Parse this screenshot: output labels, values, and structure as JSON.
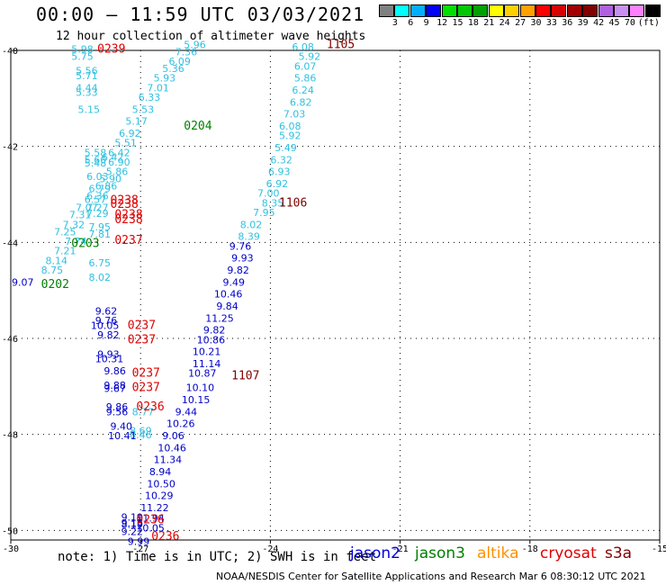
{
  "header": {
    "title": "00:00 – 11:59 UTC 03/03/2021",
    "subtitle": "12 hour collection of altimeter wave heights"
  },
  "legend": {
    "colors": [
      "#808080",
      "#00ffff",
      "#00b0ff",
      "#0000ff",
      "#00e000",
      "#00c800",
      "#00a000",
      "#ffff00",
      "#ffd000",
      "#ffa000",
      "#ff0000",
      "#d80000",
      "#a00000",
      "#800000",
      "#b060e0",
      "#c890f0",
      "#ff80ff",
      "#000000"
    ],
    "labels": [
      "",
      "3",
      "6",
      "9",
      "12",
      "15",
      "18",
      "21",
      "24",
      "27",
      "30",
      "33",
      "36",
      "39",
      "42",
      "45",
      "70",
      "(ft)"
    ],
    "unit": "(ft)"
  },
  "map": {
    "lon_ticks": [
      "-30",
      "-27",
      "-24",
      "-21",
      "-18",
      "-15"
    ],
    "lat_ticks": [
      "-40",
      "-42",
      "-44",
      "-46",
      "-48",
      "-50"
    ]
  },
  "obs_groups": [
    {
      "color": "#30c0e0",
      "obs": [
        {
          "lon": -28.6,
          "lat": -40.05,
          "v": "5.98"
        },
        {
          "lon": -28.6,
          "lat": -40.2,
          "v": "5.75"
        },
        {
          "lon": -28.5,
          "lat": -40.5,
          "v": "5.56"
        },
        {
          "lon": -28.5,
          "lat": -40.6,
          "v": "5.71"
        },
        {
          "lon": -28.5,
          "lat": -40.85,
          "v": "4.44"
        },
        {
          "lon": -28.5,
          "lat": -40.95,
          "v": "5.33"
        },
        {
          "lon": -28.45,
          "lat": -41.3,
          "v": "5.15"
        },
        {
          "lon": -28.3,
          "lat": -42.2,
          "v": "5.58"
        },
        {
          "lon": -28.3,
          "lat": -42.35,
          "v": "5.60"
        },
        {
          "lon": -28.3,
          "lat": -42.42,
          "v": "5.48"
        },
        {
          "lon": -28.25,
          "lat": -42.7,
          "v": "6.03"
        },
        {
          "lon": -28.2,
          "lat": -42.95,
          "v": "6.79"
        },
        {
          "lon": -28.25,
          "lat": -43.1,
          "v": "6.36"
        },
        {
          "lon": -28.3,
          "lat": -43.18,
          "v": "6.57"
        },
        {
          "lon": -28.5,
          "lat": -43.35,
          "v": "7.07"
        },
        {
          "lon": -28.25,
          "lat": -43.35,
          "v": "7.27"
        },
        {
          "lon": -28.25,
          "lat": -43.47,
          "v": "7.29"
        },
        {
          "lon": -28.65,
          "lat": -43.5,
          "v": "7.31"
        },
        {
          "lon": -28.8,
          "lat": -43.7,
          "v": "7.32"
        },
        {
          "lon": -28.2,
          "lat": -43.75,
          "v": "7.95"
        },
        {
          "lon": -29.0,
          "lat": -43.85,
          "v": "7.25"
        },
        {
          "lon": -28.2,
          "lat": -43.9,
          "v": "7.81"
        },
        {
          "lon": -28.75,
          "lat": -44.05,
          "v": "7.74"
        },
        {
          "lon": -29.0,
          "lat": -44.25,
          "v": "7.21"
        },
        {
          "lon": -29.2,
          "lat": -44.45,
          "v": "8.14"
        },
        {
          "lon": -29.3,
          "lat": -44.65,
          "v": "8.75"
        },
        {
          "lon": -28.2,
          "lat": -44.5,
          "v": "6.75"
        },
        {
          "lon": -28.2,
          "lat": -44.8,
          "v": "8.02"
        },
        {
          "lon": -27.9,
          "lat": -42.3,
          "v": "6.42"
        },
        {
          "lon": -27.75,
          "lat": -42.4,
          "v": "6.90"
        },
        {
          "lon": -27.8,
          "lat": -42.6,
          "v": "5.86"
        },
        {
          "lon": -27.95,
          "lat": -42.75,
          "v": "5.90"
        },
        {
          "lon": -28.05,
          "lat": -42.9,
          "v": "6.86"
        },
        {
          "lon": -27.75,
          "lat": -42.2,
          "v": "6.42"
        },
        {
          "lon": -27.6,
          "lat": -42.0,
          "v": "5.51"
        },
        {
          "lon": -27.5,
          "lat": -41.8,
          "v": "6.92"
        },
        {
          "lon": -27.35,
          "lat": -41.55,
          "v": "5.17"
        },
        {
          "lon": -27.2,
          "lat": -41.3,
          "v": "5.53"
        },
        {
          "lon": -27.05,
          "lat": -41.05,
          "v": "6.33"
        },
        {
          "lon": -26.85,
          "lat": -40.85,
          "v": "7.01"
        },
        {
          "lon": -26.7,
          "lat": -40.65,
          "v": "5.93"
        },
        {
          "lon": -26.5,
          "lat": -40.45,
          "v": "5.36"
        },
        {
          "lon": -26.35,
          "lat": -40.3,
          "v": "6.09"
        },
        {
          "lon": -26.2,
          "lat": -40.1,
          "v": "7.36"
        },
        {
          "lon": -26.0,
          "lat": -39.95,
          "v": "5.96"
        },
        {
          "lon": -23.5,
          "lat": -40.0,
          "v": "6.08"
        },
        {
          "lon": -23.35,
          "lat": -40.2,
          "v": "5.92"
        },
        {
          "lon": -23.45,
          "lat": -40.4,
          "v": "6.07"
        },
        {
          "lon": -23.45,
          "lat": -40.65,
          "v": "5.86"
        },
        {
          "lon": -23.5,
          "lat": -40.9,
          "v": "6.24"
        },
        {
          "lon": -23.55,
          "lat": -41.15,
          "v": "6.82"
        },
        {
          "lon": -23.7,
          "lat": -41.4,
          "v": "7.03"
        },
        {
          "lon": -23.8,
          "lat": -41.65,
          "v": "6.08"
        },
        {
          "lon": -23.8,
          "lat": -41.85,
          "v": "5.92"
        },
        {
          "lon": -23.9,
          "lat": -42.1,
          "v": "5.49"
        },
        {
          "lon": -24.0,
          "lat": -42.35,
          "v": "6.32"
        },
        {
          "lon": -24.05,
          "lat": -42.6,
          "v": "6.93"
        },
        {
          "lon": -24.1,
          "lat": -42.85,
          "v": "6.92"
        },
        {
          "lon": -24.3,
          "lat": -43.05,
          "v": "7.00"
        },
        {
          "lon": -24.2,
          "lat": -43.25,
          "v": "8.35"
        },
        {
          "lon": -24.4,
          "lat": -43.45,
          "v": "7.95"
        },
        {
          "lon": -24.7,
          "lat": -43.7,
          "v": "8.02"
        },
        {
          "lon": -24.75,
          "lat": -43.95,
          "v": "8.39"
        },
        {
          "lon": -27.2,
          "lat": -47.6,
          "v": "8.77"
        },
        {
          "lon": -27.25,
          "lat": -48.0,
          "v": "8.69"
        },
        {
          "lon": -27.25,
          "lat": -48.08,
          "v": "8.46"
        }
      ]
    },
    {
      "color": "#0000c8",
      "obs": [
        {
          "lon": -24.95,
          "lat": -44.15,
          "v": "9.76"
        },
        {
          "lon": -24.9,
          "lat": -44.4,
          "v": "9.93"
        },
        {
          "lon": -25.0,
          "lat": -44.65,
          "v": "9.82"
        },
        {
          "lon": -25.1,
          "lat": -44.9,
          "v": "9.49"
        },
        {
          "lon": -25.3,
          "lat": -45.15,
          "v": "10.46"
        },
        {
          "lon": -25.25,
          "lat": -45.4,
          "v": "9.84"
        },
        {
          "lon": -25.5,
          "lat": -45.65,
          "v": "11.25"
        },
        {
          "lon": -25.55,
          "lat": -45.9,
          "v": "9.82"
        },
        {
          "lon": -25.7,
          "lat": -46.1,
          "v": "10.86"
        },
        {
          "lon": -25.8,
          "lat": -46.35,
          "v": "10.21"
        },
        {
          "lon": -25.8,
          "lat": -46.6,
          "v": "11.14"
        },
        {
          "lon": -25.9,
          "lat": -46.8,
          "v": "10.87"
        },
        {
          "lon": -25.95,
          "lat": -47.1,
          "v": "10.10"
        },
        {
          "lon": -26.05,
          "lat": -47.35,
          "v": "10.15"
        },
        {
          "lon": -26.2,
          "lat": -47.6,
          "v": "9.44"
        },
        {
          "lon": -26.4,
          "lat": -47.85,
          "v": "10.26"
        },
        {
          "lon": -26.5,
          "lat": -48.1,
          "v": "9.06"
        },
        {
          "lon": -26.6,
          "lat": -48.35,
          "v": "10.46"
        },
        {
          "lon": -26.7,
          "lat": -48.6,
          "v": "11.34"
        },
        {
          "lon": -26.8,
          "lat": -48.85,
          "v": "8.94"
        },
        {
          "lon": -26.85,
          "lat": -49.1,
          "v": "10.50"
        },
        {
          "lon": -26.9,
          "lat": -49.35,
          "v": "10.29"
        },
        {
          "lon": -27.0,
          "lat": -49.6,
          "v": "11.22"
        },
        {
          "lon": -27.1,
          "lat": -49.82,
          "v": "11.94"
        },
        {
          "lon": -27.45,
          "lat": -49.8,
          "v": "9.19"
        },
        {
          "lon": -27.45,
          "lat": -49.92,
          "v": "9.15"
        },
        {
          "lon": -27.45,
          "lat": -49.95,
          "v": "8.19"
        },
        {
          "lon": -27.1,
          "lat": -50.02,
          "v": "10.05"
        },
        {
          "lon": -27.45,
          "lat": -50.1,
          "v": "9.22"
        },
        {
          "lon": -27.3,
          "lat": -50.3,
          "v": "9.99"
        },
        {
          "lon": -29.98,
          "lat": -44.9,
          "v": "9.07"
        },
        {
          "lon": -28.05,
          "lat": -45.5,
          "v": "9.62"
        },
        {
          "lon": -28.05,
          "lat": -45.7,
          "v": "9.76"
        },
        {
          "lon": -28.15,
          "lat": -45.8,
          "v": "10.05"
        },
        {
          "lon": -28.0,
          "lat": -46.0,
          "v": "9.82"
        },
        {
          "lon": -28.0,
          "lat": -46.4,
          "v": "9.93"
        },
        {
          "lon": -28.05,
          "lat": -46.5,
          "v": "10.31"
        },
        {
          "lon": -27.85,
          "lat": -46.75,
          "v": "9.86"
        },
        {
          "lon": -27.85,
          "lat": -47.05,
          "v": "9.88"
        },
        {
          "lon": -27.85,
          "lat": -47.12,
          "v": "9.67"
        },
        {
          "lon": -27.8,
          "lat": -47.5,
          "v": "9.86"
        },
        {
          "lon": -27.8,
          "lat": -47.6,
          "v": "9.56"
        },
        {
          "lon": -27.7,
          "lat": -47.9,
          "v": "9.40"
        },
        {
          "lon": -27.75,
          "lat": -48.1,
          "v": "10.41"
        }
      ]
    }
  ],
  "track_labels": [
    {
      "lon": -28.0,
      "lat": -40.05,
      "text": "0239",
      "color": "#e00000"
    },
    {
      "lon": -26.0,
      "lat": -41.65,
      "text": "0204",
      "color": "#008000"
    },
    {
      "lon": -22.7,
      "lat": -39.95,
      "text": "1105",
      "color": "#800000"
    },
    {
      "lon": -27.7,
      "lat": -43.2,
      "text": "0238",
      "color": "#e00000"
    },
    {
      "lon": -27.7,
      "lat": -43.28,
      "text": "0238",
      "color": "#e00000"
    },
    {
      "lon": -27.6,
      "lat": -43.5,
      "text": "0238",
      "color": "#e00000"
    },
    {
      "lon": -27.6,
      "lat": -43.6,
      "text": "0238",
      "color": "#e00000"
    },
    {
      "lon": -23.8,
      "lat": -43.25,
      "text": "1106",
      "color": "#800000"
    },
    {
      "lon": -28.6,
      "lat": -44.1,
      "text": "0203",
      "color": "#008000"
    },
    {
      "lon": -27.6,
      "lat": -44.03,
      "text": "0237",
      "color": "#e00000"
    },
    {
      "lon": -29.3,
      "lat": -44.95,
      "text": "0202",
      "color": "#008000"
    },
    {
      "lon": -27.3,
      "lat": -45.8,
      "text": "0237",
      "color": "#e00000"
    },
    {
      "lon": -27.3,
      "lat": -46.1,
      "text": "0237",
      "color": "#e00000"
    },
    {
      "lon": -27.2,
      "lat": -46.8,
      "text": "0237",
      "color": "#e00000"
    },
    {
      "lon": -27.2,
      "lat": -47.1,
      "text": "0237",
      "color": "#e00000"
    },
    {
      "lon": -27.1,
      "lat": -47.5,
      "text": "0236",
      "color": "#e00000"
    },
    {
      "lon": -24.9,
      "lat": -46.85,
      "text": "1107",
      "color": "#800000"
    },
    {
      "lon": -27.1,
      "lat": -49.85,
      "text": "0236",
      "color": "#e00000"
    },
    {
      "lon": -26.75,
      "lat": -50.2,
      "text": "0236",
      "color": "#e00000"
    }
  ],
  "note": "note: 1) Time is in UTC; 2) SWH is in feet",
  "satellites": [
    {
      "name": "jason2",
      "color": "#0000e0"
    },
    {
      "name": "jason3",
      "color": "#008000"
    },
    {
      "name": "altika",
      "color": "#ff9000"
    },
    {
      "name": "cryosat",
      "color": "#e00000"
    },
    {
      "name": "s3a",
      "color": "#800000"
    }
  ],
  "footer": "NOAA/NESDIS Center for Satellite Applications and Research   Mar  6 08:30:12 UTC 2021"
}
